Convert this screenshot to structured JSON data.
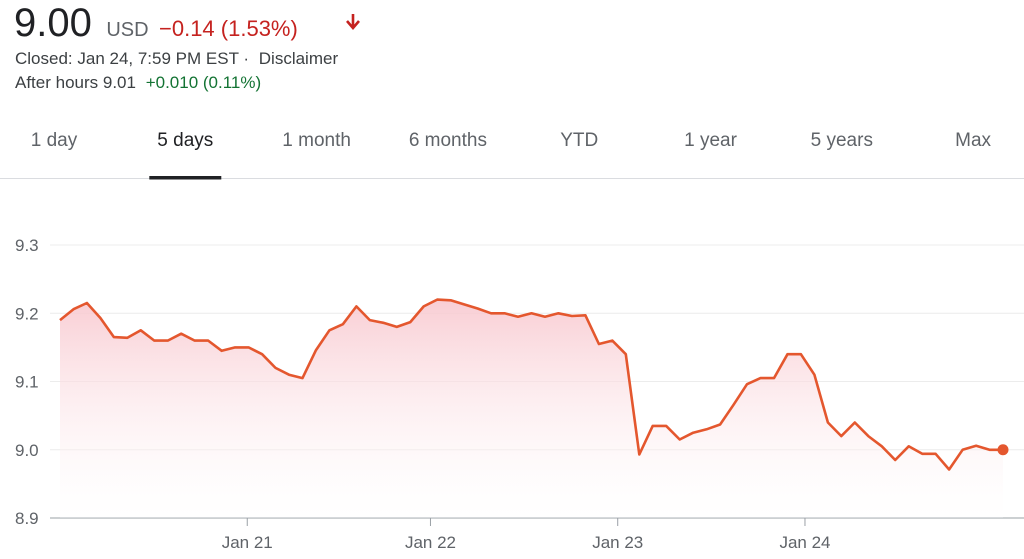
{
  "header": {
    "price": "9.00",
    "currency": "USD",
    "change": "−0.14 (1.53%)",
    "closed": "Closed: Jan 24, 7:59 PM EST ·",
    "disclaimer": "Disclaimer",
    "after_hours": "After hours 9.01",
    "after_hours_change": "+0.010 (0.11%)"
  },
  "tabs": {
    "items": [
      "1 day",
      "5 days",
      "1 month",
      "6 months",
      "YTD",
      "1 year",
      "5 years",
      "Max"
    ],
    "active": 1
  },
  "chart_data": {
    "type": "line",
    "color": "#e4572e",
    "grid": true,
    "values": [
      9.19,
      9.206,
      9.215,
      9.193,
      9.165,
      9.164,
      9.175,
      9.16,
      9.16,
      9.17,
      9.16,
      9.16,
      9.145,
      9.15,
      9.15,
      9.14,
      9.12,
      9.11,
      9.105,
      9.146,
      9.175,
      9.184,
      9.21,
      9.19,
      9.186,
      9.18,
      9.187,
      9.21,
      9.22,
      9.219,
      9.213,
      9.207,
      9.2,
      9.2,
      9.195,
      9.2,
      9.195,
      9.2,
      9.196,
      9.197,
      9.155,
      9.16,
      9.14,
      8.993,
      9.035,
      9.035,
      9.015,
      9.025,
      9.03,
      9.037,
      9.066,
      9.096,
      9.105,
      9.105,
      9.14,
      9.14,
      9.11,
      9.04,
      9.02,
      9.04,
      9.02,
      9.005,
      8.985,
      9.005,
      8.994,
      8.994,
      8.971,
      9.0,
      9.006,
      9.0,
      9.0
    ],
    "xlim": [
      0,
      70
    ],
    "xticks": [
      {
        "value": 13.9,
        "label": "Jan 21"
      },
      {
        "value": 27.5,
        "label": "Jan 22"
      },
      {
        "value": 41.4,
        "label": "Jan 23"
      },
      {
        "value": 55.3,
        "label": "Jan 24"
      }
    ],
    "ylim": [
      8.9,
      9.3
    ],
    "yticks": [
      8.9,
      {
        "value": 9,
        "label": "9.0"
      },
      9.1,
      9.2,
      9.3
    ]
  }
}
